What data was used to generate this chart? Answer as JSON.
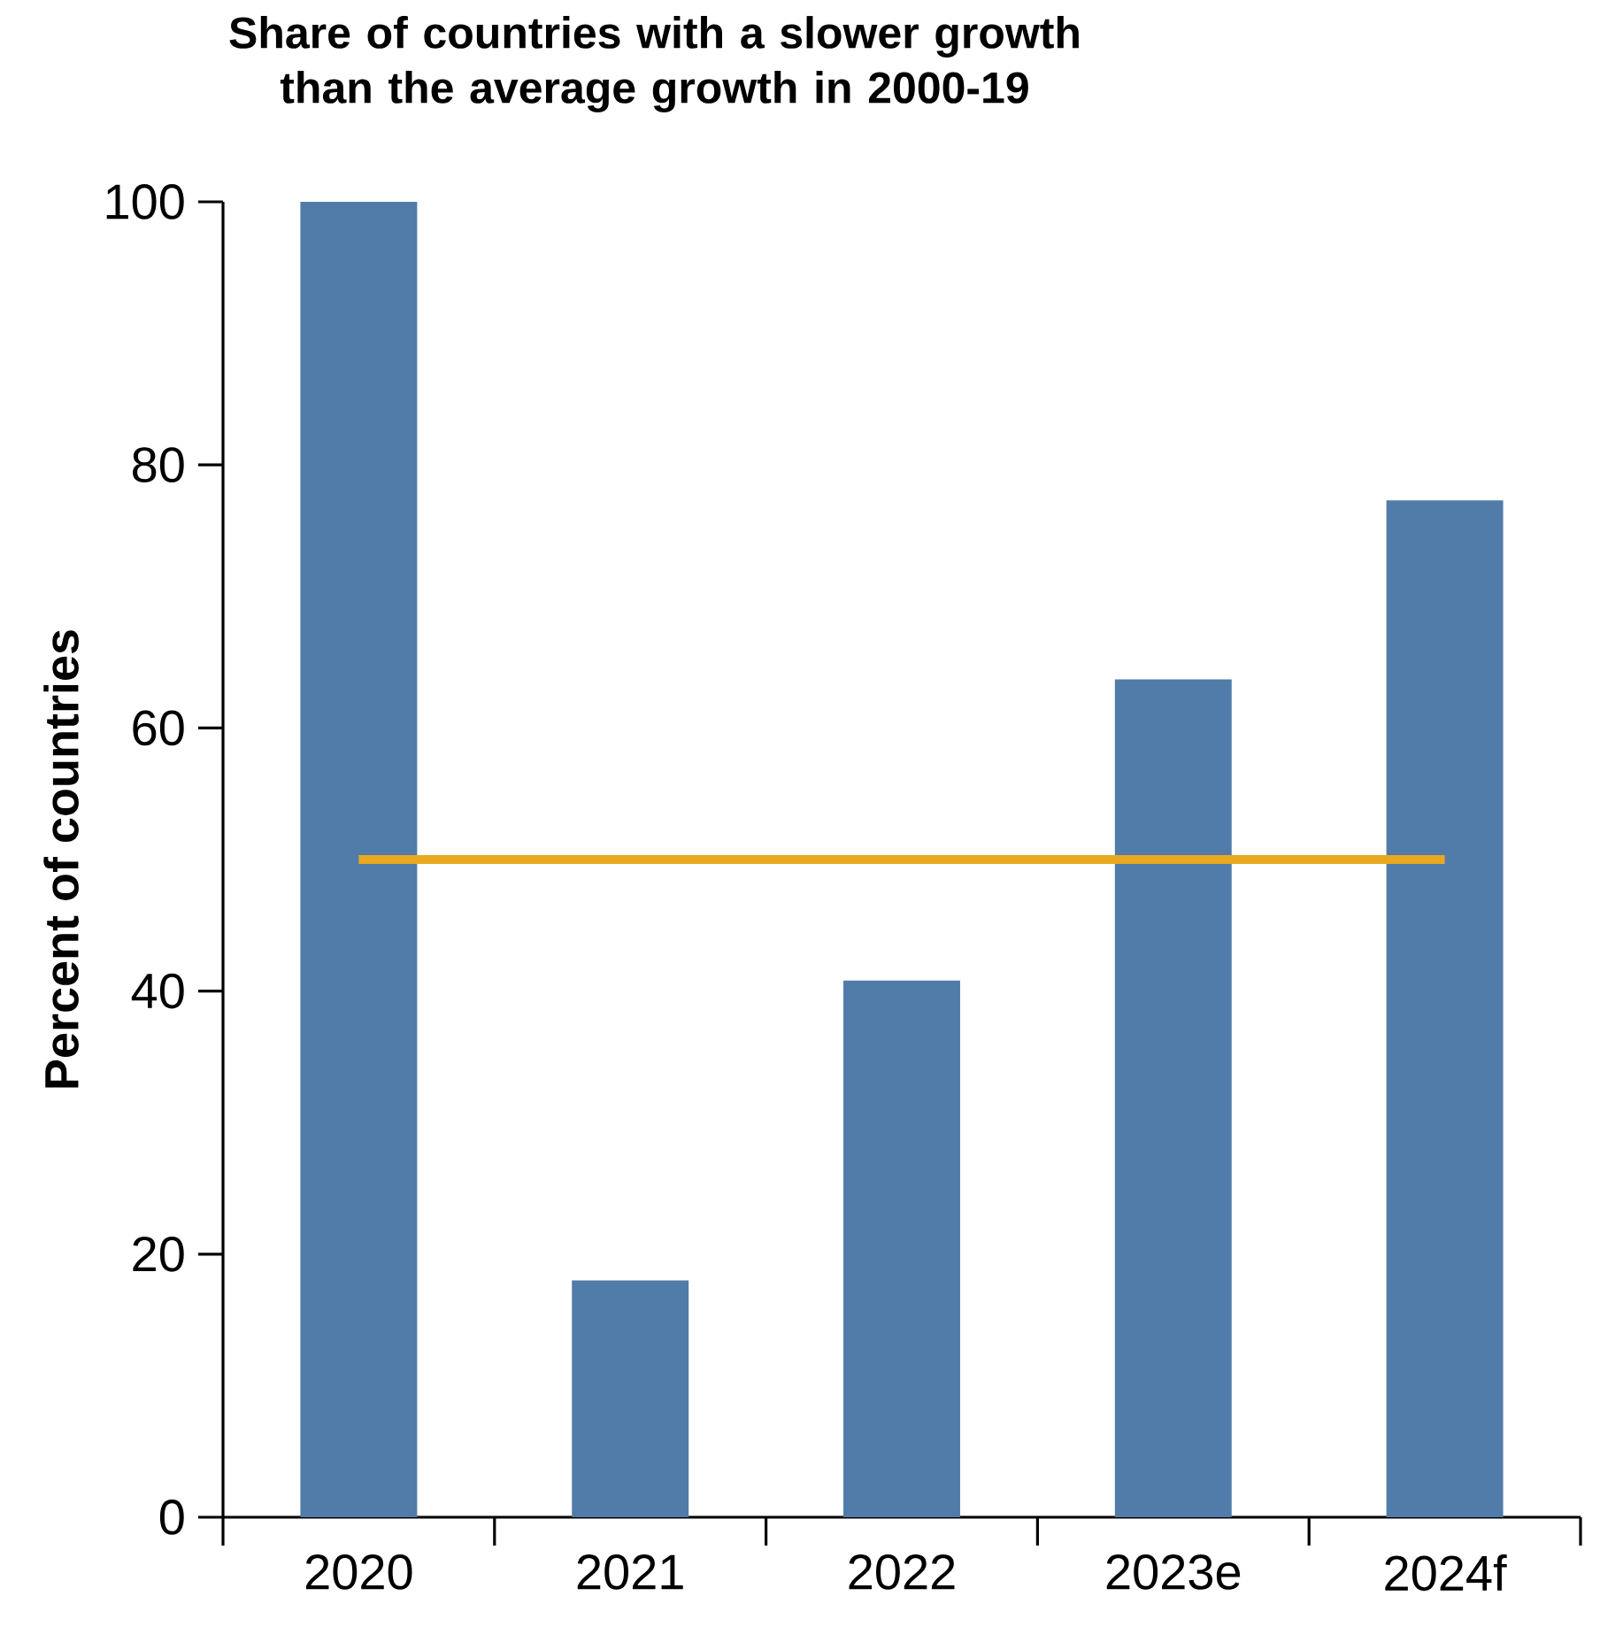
{
  "chart_data": {
    "type": "bar",
    "title": "Share of countries with a slower growth than the average growth in 2000-19",
    "ylabel": "Percent of countries",
    "categories": [
      "2020",
      "2021",
      "2022",
      "2023e",
      "2024f"
    ],
    "ylim": [
      0,
      100
    ],
    "yticks": [
      0,
      20,
      40,
      60,
      80,
      100
    ],
    "series": [
      {
        "color": "#517ba8",
        "values": [
          100,
          18,
          40.8,
          63.7,
          77.3
        ]
      },
      {
        "type": "line",
        "color": "#e8a920",
        "values": [
          50,
          50,
          50,
          50,
          50
        ]
      }
    ]
  }
}
